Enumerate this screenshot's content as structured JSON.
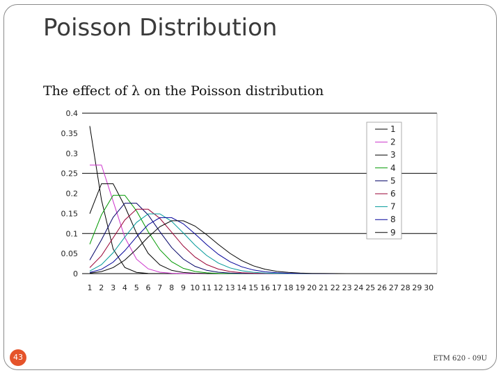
{
  "slide": {
    "title": "Poisson Distribution",
    "subtitle": "The effect of λ on the Poisson distribution",
    "page_number": "43",
    "footer": "ETM 620 - 09U",
    "accent_color": "#e5532a"
  },
  "chart_data": {
    "type": "line",
    "title": "",
    "xlabel": "",
    "ylabel": "",
    "x": [
      1,
      2,
      3,
      4,
      5,
      6,
      7,
      8,
      9,
      10,
      11,
      12,
      13,
      14,
      15,
      16,
      17,
      18,
      19,
      20,
      21,
      22,
      23,
      24,
      25,
      26,
      27,
      28,
      29,
      30
    ],
    "ylim": [
      0,
      0.4
    ],
    "yticks": [
      "0.4",
      "0.35",
      "0.3",
      "0.25",
      "0.2",
      "0.15",
      "0.1",
      "0.05",
      "0"
    ],
    "ytick_values": [
      0.4,
      0.35,
      0.3,
      0.25,
      0.2,
      0.15,
      0.1,
      0.05,
      0
    ],
    "grid": "horizontal at 0.1, 0.25, 0.4",
    "legend_position": "top-right",
    "series": [
      {
        "name": "1",
        "color": "#000000",
        "values": [
          0.3679,
          0.1839,
          0.0613,
          0.0153,
          0.0031,
          0.0005,
          0.0001,
          0,
          0,
          0,
          0,
          0,
          0,
          0,
          0,
          0,
          0,
          0,
          0,
          0,
          0,
          0,
          0,
          0,
          0,
          0,
          0,
          0,
          0,
          0
        ]
      },
      {
        "name": "2",
        "color": "#cc33cc",
        "values": [
          0.2707,
          0.2707,
          0.1804,
          0.0902,
          0.0361,
          0.012,
          0.0034,
          0.0009,
          0.0002,
          0,
          0,
          0,
          0,
          0,
          0,
          0,
          0,
          0,
          0,
          0,
          0,
          0,
          0,
          0,
          0,
          0,
          0,
          0,
          0,
          0
        ]
      },
      {
        "name": "3",
        "color": "#000000",
        "values": [
          0.1494,
          0.224,
          0.224,
          0.168,
          0.1008,
          0.0504,
          0.0216,
          0.0081,
          0.0027,
          0.0008,
          0.0002,
          0.0001,
          0,
          0,
          0,
          0,
          0,
          0,
          0,
          0,
          0,
          0,
          0,
          0,
          0,
          0,
          0,
          0,
          0,
          0
        ]
      },
      {
        "name": "4",
        "color": "#009900",
        "values": [
          0.0733,
          0.1465,
          0.1954,
          0.1954,
          0.1563,
          0.1042,
          0.0595,
          0.0298,
          0.0132,
          0.0053,
          0.0019,
          0.0006,
          0.0002,
          0.0001,
          0,
          0,
          0,
          0,
          0,
          0,
          0,
          0,
          0,
          0,
          0,
          0,
          0,
          0,
          0,
          0
        ]
      },
      {
        "name": "5",
        "color": "#000066",
        "values": [
          0.0337,
          0.0842,
          0.1404,
          0.1755,
          0.1755,
          0.1462,
          0.1044,
          0.0653,
          0.0363,
          0.0181,
          0.0082,
          0.0034,
          0.0013,
          0.0005,
          0.0002,
          0,
          0,
          0,
          0,
          0,
          0,
          0,
          0,
          0,
          0,
          0,
          0,
          0,
          0,
          0
        ]
      },
      {
        "name": "6",
        "color": "#990033",
        "values": [
          0.0149,
          0.0446,
          0.0892,
          0.1339,
          0.1606,
          0.1606,
          0.1377,
          0.1033,
          0.0688,
          0.0413,
          0.0225,
          0.0113,
          0.0052,
          0.0022,
          0.0009,
          0.0003,
          0.0001,
          0,
          0,
          0,
          0,
          0,
          0,
          0,
          0,
          0,
          0,
          0,
          0,
          0
        ]
      },
      {
        "name": "7",
        "color": "#009999",
        "values": [
          0.0064,
          0.0223,
          0.0521,
          0.0912,
          0.1277,
          0.149,
          0.149,
          0.1304,
          0.1014,
          0.071,
          0.0452,
          0.0263,
          0.0142,
          0.0071,
          0.0033,
          0.0014,
          0.0006,
          0.0002,
          0.0001,
          0,
          0,
          0,
          0,
          0,
          0,
          0,
          0,
          0,
          0,
          0
        ]
      },
      {
        "name": "8",
        "color": "#000099",
        "values": [
          0.0027,
          0.0107,
          0.0286,
          0.0573,
          0.0916,
          0.1221,
          0.1396,
          0.1396,
          0.1241,
          0.0993,
          0.0722,
          0.0481,
          0.0296,
          0.0169,
          0.009,
          0.0045,
          0.0021,
          0.0009,
          0.0004,
          0.0002,
          0,
          0,
          0,
          0,
          0,
          0,
          0,
          0,
          0,
          0
        ]
      },
      {
        "name": "9",
        "color": "#000000",
        "values": [
          0.0011,
          0.005,
          0.015,
          0.0337,
          0.0607,
          0.0911,
          0.1171,
          0.1318,
          0.1318,
          0.1186,
          0.097,
          0.0728,
          0.0504,
          0.0324,
          0.0194,
          0.0109,
          0.0058,
          0.0029,
          0.0014,
          0.0006,
          0.0003,
          0.0001,
          0,
          0,
          0,
          0,
          0,
          0,
          0,
          0
        ]
      }
    ]
  }
}
